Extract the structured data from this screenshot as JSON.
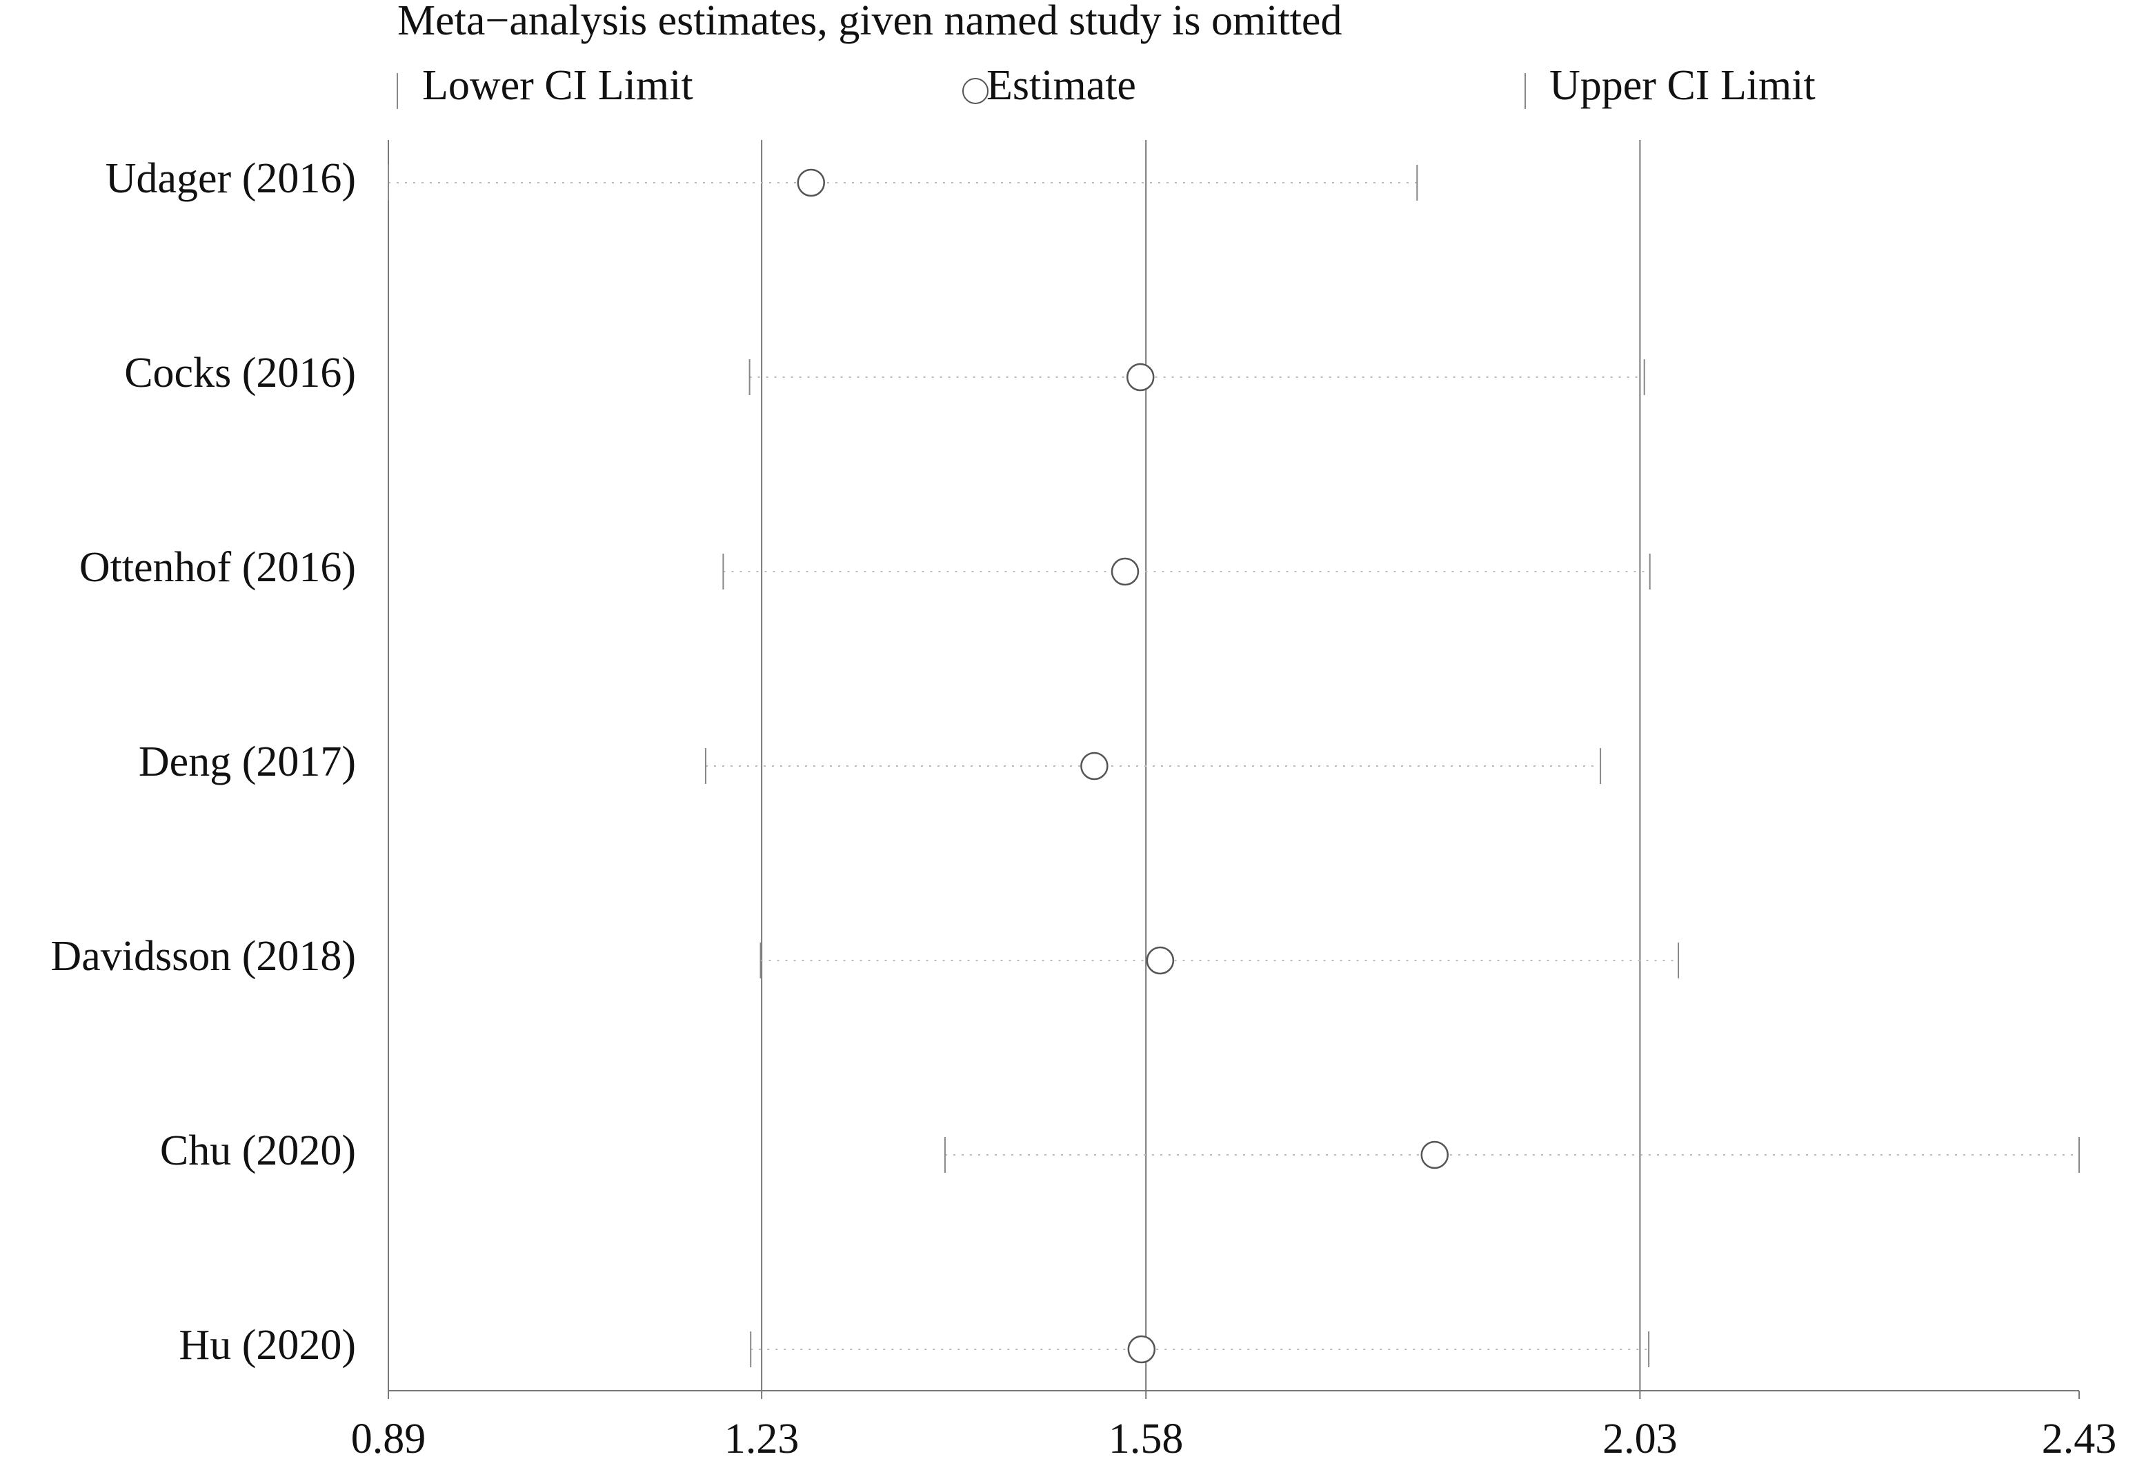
{
  "chart_data": {
    "type": "forest",
    "title": "Meta−analysis estimates, given named study is omitted",
    "categories": [
      "Udager (2016)",
      "Cocks (2016)",
      "Ottenhof (2016)",
      "Deng (2017)",
      "Davidsson (2018)",
      "Chu (2020)",
      "Hu (2020)"
    ],
    "series": [
      {
        "name": "Lower CI Limit",
        "color": "#888888",
        "values": [
          0.89,
          1.219,
          1.195,
          1.179,
          1.229,
          1.397,
          1.22
        ]
      },
      {
        "name": "Estimate",
        "color": "#555555",
        "values": [
          1.275,
          1.575,
          1.561,
          1.533,
          1.593,
          1.843,
          1.576
        ]
      },
      {
        "name": "Upper CI Limit",
        "color": "#888888",
        "values": [
          1.827,
          2.034,
          2.039,
          1.994,
          2.065,
          2.43,
          2.038
        ]
      }
    ],
    "xlim": [
      0.89,
      2.43
    ],
    "xticks": [
      0.89,
      1.23,
      1.58,
      2.03,
      2.43
    ],
    "grid": true
  }
}
